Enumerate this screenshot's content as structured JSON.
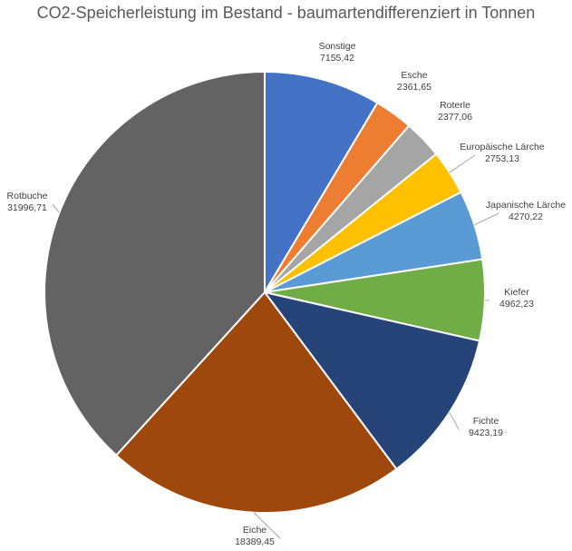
{
  "chart_data": {
    "type": "pie",
    "title": "CO2-Speicherleistung im Bestand - baumartendifferenziert in Tonnen",
    "start_angle_deg": 0,
    "direction": "clockwise",
    "slices": [
      {
        "label": "Sonstige",
        "value": 7155.42,
        "value_text": "7155,42",
        "color": "#4472C4"
      },
      {
        "label": "Esche",
        "value": 2361.65,
        "value_text": "2361,65",
        "color": "#ED7D31"
      },
      {
        "label": "Roterle",
        "value": 2377.06,
        "value_text": "2377,06",
        "color": "#A5A5A5"
      },
      {
        "label": "Europäische Lärche",
        "value": 2753.13,
        "value_text": "2753,13",
        "color": "#FFC000"
      },
      {
        "label": "Japanische Lärche",
        "value": 4270.22,
        "value_text": "4270,22",
        "color": "#5B9BD5"
      },
      {
        "label": "Kiefer",
        "value": 4962.23,
        "value_text": "4962,23",
        "color": "#70AD47"
      },
      {
        "label": "Fichte",
        "value": 9423.19,
        "value_text": "9423,19",
        "color": "#264478"
      },
      {
        "label": "Eiche",
        "value": 18389.45,
        "value_text": "18389,45",
        "color": "#9E480E"
      },
      {
        "label": "Rotbuche",
        "value": 31996.71,
        "value_text": "31996,71",
        "color": "#636363"
      }
    ],
    "legend": "none",
    "data_labels": "outside-with-leader-lines"
  }
}
